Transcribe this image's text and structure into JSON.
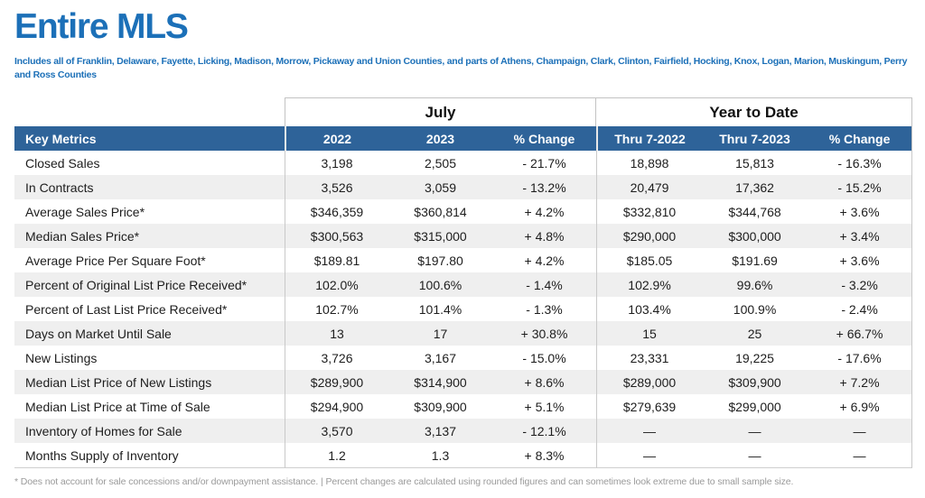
{
  "header": {
    "title": "Entire MLS",
    "subtitle": "Includes all of Franklin, Delaware, Fayette, Licking, Madison, Morrow, Pickaway and Union Counties, and parts of Athens, Champaign, Clark, Clinton, Fairfield, Hocking, Knox, Logan, Marion, Muskingum, Perry and Ross Counties"
  },
  "table": {
    "group_headers": [
      {
        "label": "July",
        "span": 3
      },
      {
        "label": "Year to Date",
        "span": 3
      }
    ],
    "columns": {
      "metric_label": "Key Metrics",
      "value_labels": [
        "2022",
        "2023",
        "% Change",
        "Thru 7-2022",
        "Thru 7-2023",
        "% Change"
      ]
    },
    "rows": [
      {
        "metric": "Closed Sales",
        "values": [
          "3,198",
          "2,505",
          "- 21.7%",
          "18,898",
          "15,813",
          "- 16.3%"
        ]
      },
      {
        "metric": "In Contracts",
        "values": [
          "3,526",
          "3,059",
          "- 13.2%",
          "20,479",
          "17,362",
          "- 15.2%"
        ]
      },
      {
        "metric": "Average Sales Price*",
        "values": [
          "$346,359",
          "$360,814",
          "+ 4.2%",
          "$332,810",
          "$344,768",
          "+ 3.6%"
        ]
      },
      {
        "metric": "Median Sales Price*",
        "values": [
          "$300,563",
          "$315,000",
          "+ 4.8%",
          "$290,000",
          "$300,000",
          "+ 3.4%"
        ]
      },
      {
        "metric": "Average Price Per Square Foot*",
        "values": [
          "$189.81",
          "$197.80",
          "+ 4.2%",
          "$185.05",
          "$191.69",
          "+ 3.6%"
        ]
      },
      {
        "metric": "Percent of Original List Price Received*",
        "values": [
          "102.0%",
          "100.6%",
          "- 1.4%",
          "102.9%",
          "99.6%",
          "- 3.2%"
        ]
      },
      {
        "metric": "Percent of Last List Price Received*",
        "values": [
          "102.7%",
          "101.4%",
          "- 1.3%",
          "103.4%",
          "100.9%",
          "- 2.4%"
        ]
      },
      {
        "metric": "Days on Market Until Sale",
        "values": [
          "13",
          "17",
          "+ 30.8%",
          "15",
          "25",
          "+ 66.7%"
        ]
      },
      {
        "metric": "New Listings",
        "values": [
          "3,726",
          "3,167",
          "- 15.0%",
          "23,331",
          "19,225",
          "- 17.6%"
        ]
      },
      {
        "metric": "Median List Price of New Listings",
        "values": [
          "$289,900",
          "$314,900",
          "+ 8.6%",
          "$289,000",
          "$309,900",
          "+ 7.2%"
        ]
      },
      {
        "metric": "Median List Price at Time of Sale",
        "values": [
          "$294,900",
          "$309,900",
          "+ 5.1%",
          "$279,639",
          "$299,000",
          "+ 6.9%"
        ]
      },
      {
        "metric": "Inventory of Homes for Sale",
        "values": [
          "3,570",
          "3,137",
          "- 12.1%",
          "—",
          "—",
          "—"
        ]
      },
      {
        "metric": "Months Supply of Inventory",
        "values": [
          "1.2",
          "1.3",
          "+ 8.3%",
          "—",
          "—",
          "—"
        ]
      }
    ]
  },
  "footnote": "* Does not account for sale concessions and/or downpayment assistance. | Percent changes are calculated using rounded figures and can sometimes look extreme due to small sample size.",
  "colors": {
    "title_blue": "#1c70b8",
    "header_blue": "#2e6399",
    "stripe_gray": "#efefef",
    "border_gray": "#c3c3c3",
    "footnote_gray": "#9a9a9a"
  }
}
